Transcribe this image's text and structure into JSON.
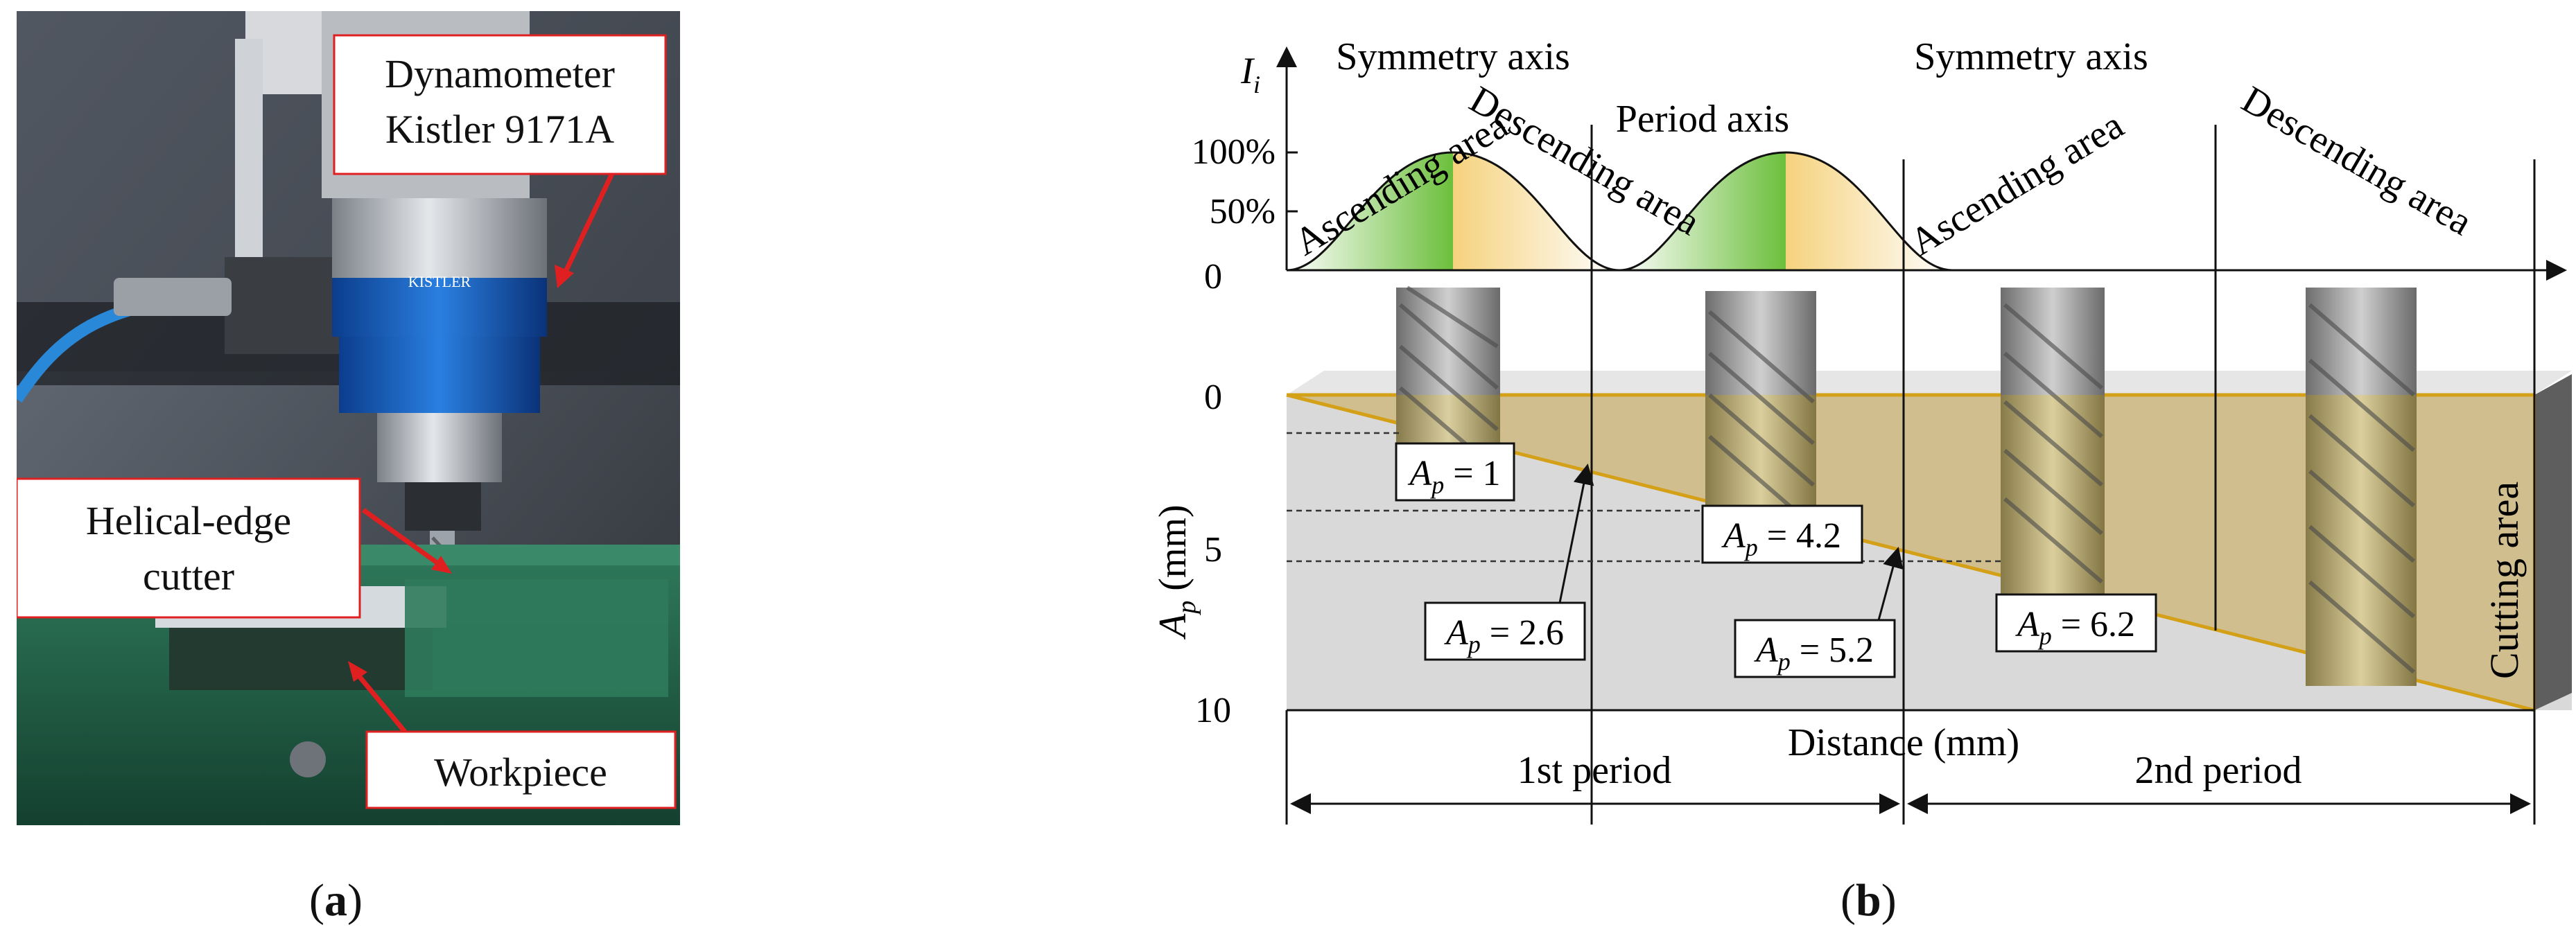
{
  "panel_a": {
    "caption_open": "(",
    "caption_letter": "a",
    "caption_close": ")",
    "callouts": {
      "dynamometer_line1": "Dynamometer",
      "dynamometer_line2": "Kistler 9171A",
      "cutter_line1": "Helical-edge",
      "cutter_line2": "cutter",
      "workpiece": "Workpiece"
    },
    "brand_label": "KISTLER"
  },
  "panel_b": {
    "caption_open": "(",
    "caption_letter": "b",
    "caption_close": ")",
    "y_axis_top_label_main": "I",
    "y_axis_top_label_sub": "i",
    "top_ticks": [
      "100%",
      "50%",
      "0"
    ],
    "symmetry_axis_1": "Symmetry axis",
    "symmetry_axis_2": "Symmetry axis",
    "period_axis": "Period axis",
    "ascending_1": "Ascending  area",
    "descending_1": "Descending area",
    "ascending_2": "Ascending  area",
    "descending_2": "Descending area",
    "ap_ticks": [
      "0",
      "5",
      "10"
    ],
    "ap_axis_main": "A",
    "ap_axis_sub": "p",
    "ap_axis_unit": " (mm)",
    "distance_label": "Distance (mm)",
    "cutting_area": "Cutting area",
    "period_1": "1st period",
    "period_2": "2nd period",
    "ap_labels": [
      {
        "name": "A",
        "sub": "p",
        "value": " = 1"
      },
      {
        "name": "A",
        "sub": "p",
        "value": " = 4.2"
      },
      {
        "name": "A",
        "sub": "p",
        "value": " = 2.6"
      },
      {
        "name": "A",
        "sub": "p",
        "value": " = 5.2"
      },
      {
        "name": "A",
        "sub": "p",
        "value": " = 6.2"
      }
    ],
    "colors": {
      "ascending_fill": "#6cbf3c",
      "descending_fill": "#f5d27e",
      "cutting_zone": "#c9ab5e",
      "workpiece_gray": "#d9d9d9",
      "incline_line": "#d4a017",
      "callout_red": "#e02020"
    }
  }
}
